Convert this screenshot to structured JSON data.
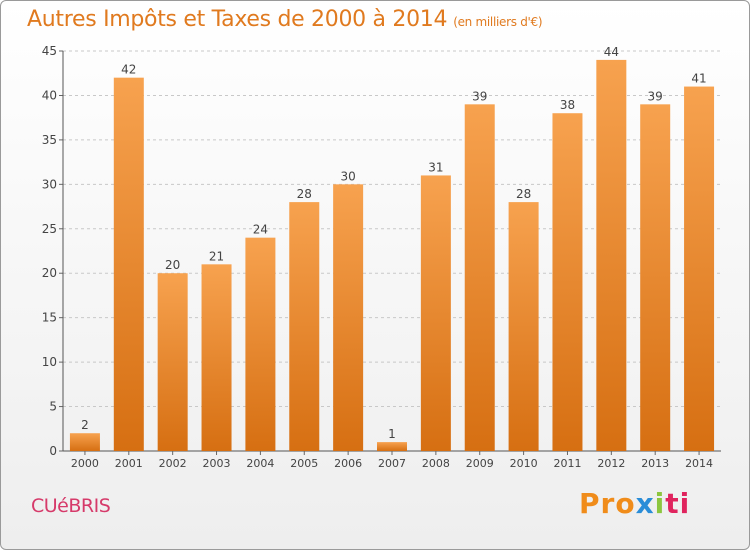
{
  "title": "Autres Impôts et Taxes de 2000 à 2014",
  "subtitle": "(en milliers d'€)",
  "commune": "CUéBRIS",
  "logo": {
    "p1": "Pro",
    "p2": "x",
    "p3": "i",
    "p4": "ti"
  },
  "colors": {
    "bar_top": "#f7a24f",
    "bar_bottom": "#d66f12",
    "title": "#e07a1f",
    "commune": "#d63a6a"
  },
  "chart_data": {
    "type": "bar",
    "categories": [
      "2000",
      "2001",
      "2002",
      "2003",
      "2004",
      "2005",
      "2006",
      "2007",
      "2008",
      "2009",
      "2010",
      "2011",
      "2012",
      "2013",
      "2014"
    ],
    "values": [
      2,
      42,
      20,
      21,
      24,
      28,
      30,
      1,
      31,
      39,
      28,
      38,
      44,
      39,
      41
    ],
    "yticks": [
      0,
      5,
      10,
      15,
      20,
      25,
      30,
      35,
      40,
      45
    ],
    "ylim": [
      0,
      45
    ],
    "grid": "horizontal dashed",
    "xlabel": "",
    "ylabel": ""
  }
}
